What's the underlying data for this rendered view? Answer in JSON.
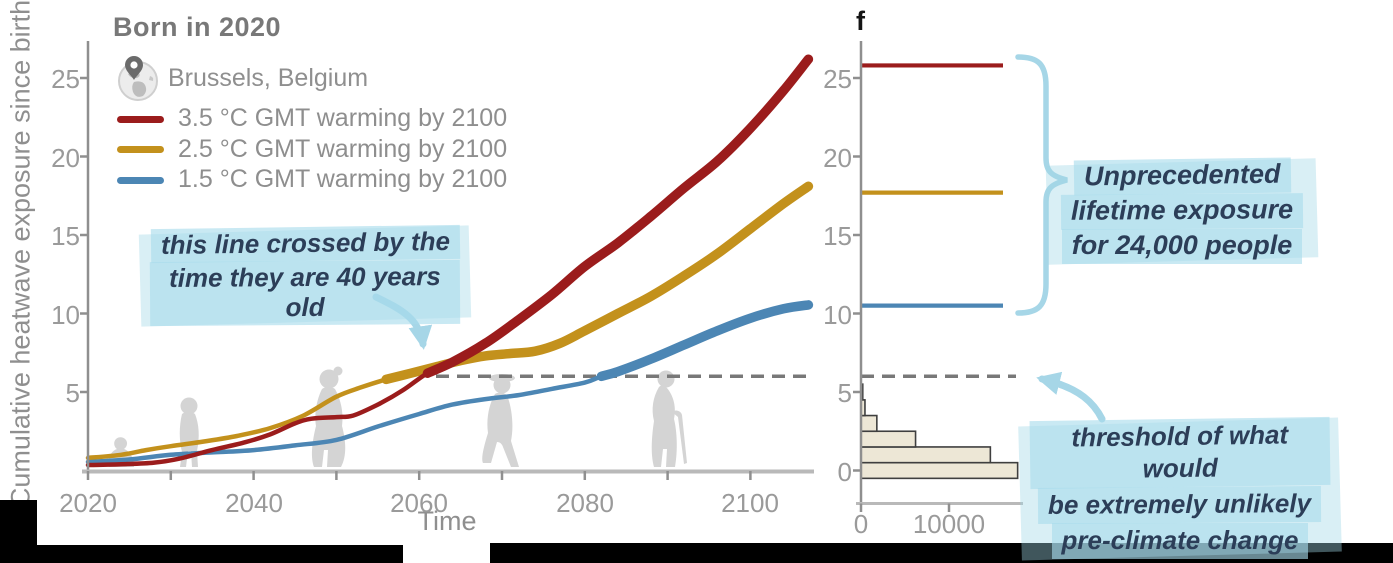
{
  "title": "Born in 2020",
  "location": "Brussels, Belgium",
  "icons": {
    "location": "globe-with-pin-icon"
  },
  "decorative_silhouettes": [
    "crawling-baby",
    "toddler",
    "adult-woman",
    "older-woman-walking",
    "elderly-person-with-cane"
  ],
  "legend": {
    "items": [
      {
        "label": "3.5 °C GMT warming by 2100",
        "color": "#9B1C1C"
      },
      {
        "label": "2.5 °C GMT warming by 2100",
        "color": "#C3911C"
      },
      {
        "label": "1.5 °C GMT warming by 2100",
        "color": "#4C86B4"
      }
    ]
  },
  "annotations": {
    "crossing_lines": [
      "this line crossed by the",
      "time they are 40 years old"
    ],
    "unprecedented_lines": [
      "Unprecedented",
      "lifetime exposure",
      "for 24,000 people"
    ],
    "threshold_lines": [
      "threshold of what would",
      "be extremely unlikely",
      "pre-climate change"
    ]
  },
  "colors": {
    "highlight": "#BDE3EF",
    "annotation_text": "#2C3E58",
    "arrow_brace": "#A6D6E7",
    "dashed_threshold": "#787878",
    "histogram_fill": "#EDE7D6",
    "histogram_stroke": "#3F3F3F",
    "silhouette": "#D4D4D4",
    "axis": "#8F8F8F",
    "baseline": "#B9B9B9"
  },
  "chart_data": [
    {
      "type": "line",
      "title": "Born in 2020",
      "xlabel": "Time",
      "ylabel": "Cumulative heatwave exposure since birth",
      "xlim": [
        2020,
        2108
      ],
      "ylim": [
        0,
        27
      ],
      "xticks_major": [
        2020,
        2040,
        2060,
        2080,
        2100
      ],
      "xticks_minor": [
        2030,
        2050,
        2070,
        2090
      ],
      "yticks": [
        5,
        10,
        15,
        20,
        25
      ],
      "grid": false,
      "threshold": {
        "value": 6,
        "style": "dashed",
        "start_year": 2062
      },
      "series": [
        {
          "name": "1.5 °C GMT warming by 2100",
          "color": "#4C86B4",
          "thick_from": 2082,
          "x": [
            2020,
            2025,
            2030,
            2035,
            2040,
            2045,
            2050,
            2055,
            2060,
            2064,
            2068,
            2072,
            2076,
            2080,
            2082,
            2084,
            2088,
            2092,
            2096,
            2100,
            2104,
            2107
          ],
          "y": [
            0.55,
            0.7,
            1.0,
            1.15,
            1.3,
            1.6,
            1.95,
            2.8,
            3.6,
            4.2,
            4.55,
            4.8,
            5.2,
            5.6,
            6.0,
            6.3,
            7.1,
            8.0,
            8.9,
            9.7,
            10.3,
            10.55
          ]
        },
        {
          "name": "2.5 °C GMT warming by 2100",
          "color": "#C3911C",
          "thick_from": 2056,
          "x": [
            2020,
            2024,
            2027,
            2030,
            2034,
            2038,
            2042,
            2046,
            2050,
            2053,
            2056,
            2059,
            2062,
            2065,
            2068,
            2071,
            2074,
            2077,
            2080,
            2084,
            2088,
            2092,
            2096,
            2100,
            2104,
            2107
          ],
          "y": [
            0.8,
            1.0,
            1.3,
            1.55,
            1.85,
            2.2,
            2.7,
            3.5,
            4.7,
            5.3,
            5.8,
            6.2,
            6.6,
            7.0,
            7.3,
            7.45,
            7.6,
            8.1,
            8.9,
            10.0,
            11.1,
            12.4,
            13.8,
            15.4,
            17.0,
            18.1
          ]
        },
        {
          "name": "3.5 °C GMT warming by 2100",
          "color": "#9B1C1C",
          "thick_from": 2061,
          "x": [
            2020,
            2024,
            2028,
            2031,
            2035,
            2039,
            2042,
            2045,
            2047,
            2050,
            2052,
            2055,
            2058,
            2061,
            2064,
            2068,
            2072,
            2076,
            2080,
            2084,
            2088,
            2092,
            2096,
            2100,
            2104,
            2107
          ],
          "y": [
            0.35,
            0.4,
            0.5,
            0.75,
            1.3,
            1.8,
            2.3,
            3.0,
            3.3,
            3.4,
            3.5,
            4.2,
            5.1,
            6.2,
            6.9,
            8.1,
            9.6,
            11.2,
            13.0,
            14.5,
            16.2,
            18.0,
            19.7,
            21.8,
            24.2,
            26.2
          ]
        }
      ]
    },
    {
      "type": "histogram_horizontal",
      "panel_label": "f",
      "xticks": [
        0,
        10000
      ],
      "yticks": [
        0,
        5,
        10,
        15,
        20,
        25
      ],
      "xlim": [
        0,
        18500
      ],
      "ylim": [
        -1,
        27.5
      ],
      "bins": {
        "centers": [
          0,
          1,
          2,
          3,
          4,
          5
        ],
        "counts": [
          17800,
          14700,
          6200,
          1800,
          450,
          200
        ]
      },
      "reference_lines": [
        {
          "label": "3.5 °C GMT warming by 2100",
          "value": 25.8,
          "color": "#9B1C1C"
        },
        {
          "label": "2.5 °C GMT warming by 2100",
          "value": 17.7,
          "color": "#C3911C"
        },
        {
          "label": "1.5 °C GMT warming by 2100",
          "value": 10.5,
          "color": "#4C86B4"
        }
      ],
      "threshold": {
        "value": 6,
        "style": "dashed"
      }
    }
  ]
}
